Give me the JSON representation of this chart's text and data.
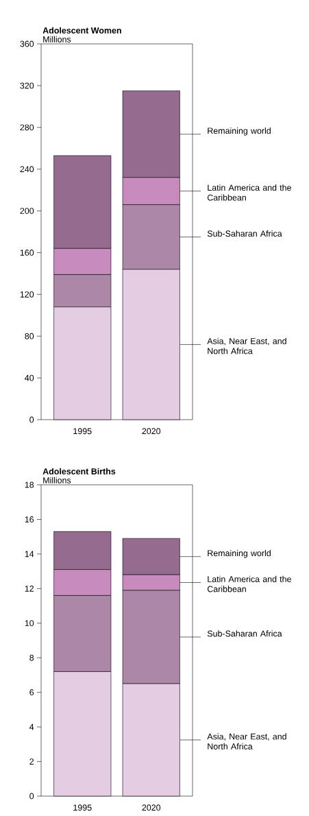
{
  "chart_data": [
    {
      "type": "bar",
      "title": "Adolescent Women",
      "ylabel": "Millions",
      "categories": [
        "1995",
        "2020"
      ],
      "stacked": true,
      "legend": "right",
      "ylim": [
        0,
        360
      ],
      "yticks": [
        0,
        40,
        80,
        120,
        160,
        200,
        240,
        280,
        320,
        360
      ],
      "series": [
        {
          "name": "Asia, Near East, and North Africa",
          "color": "#e4cce2",
          "values": [
            108,
            144
          ]
        },
        {
          "name": "Sub-Saharan Africa",
          "color": "#ac87a8",
          "values": [
            31,
            62
          ]
        },
        {
          "name": "Latin America and the Caribbean",
          "color": "#c78bbe",
          "values": [
            25,
            26
          ]
        },
        {
          "name": "Remaining world",
          "color": "#956b8f",
          "values": [
            89,
            83
          ]
        }
      ]
    },
    {
      "type": "bar",
      "title": "Adolescent Births",
      "ylabel": "Millions",
      "categories": [
        "1995",
        "2020"
      ],
      "stacked": true,
      "legend": "right",
      "ylim": [
        0,
        18
      ],
      "yticks": [
        0,
        2,
        4,
        6,
        8,
        10,
        12,
        14,
        16,
        18
      ],
      "series": [
        {
          "name": "Asia, Near East, and North Africa",
          "color": "#e4cce2",
          "values": [
            7.2,
            6.5
          ]
        },
        {
          "name": "Sub-Saharan Africa",
          "color": "#ac87a8",
          "values": [
            4.4,
            5.4
          ]
        },
        {
          "name": "Latin America and the Caribbean",
          "color": "#c78bbe",
          "values": [
            1.5,
            0.9
          ]
        },
        {
          "name": "Remaining world",
          "color": "#956b8f",
          "values": [
            2.2,
            2.1
          ]
        }
      ]
    }
  ]
}
